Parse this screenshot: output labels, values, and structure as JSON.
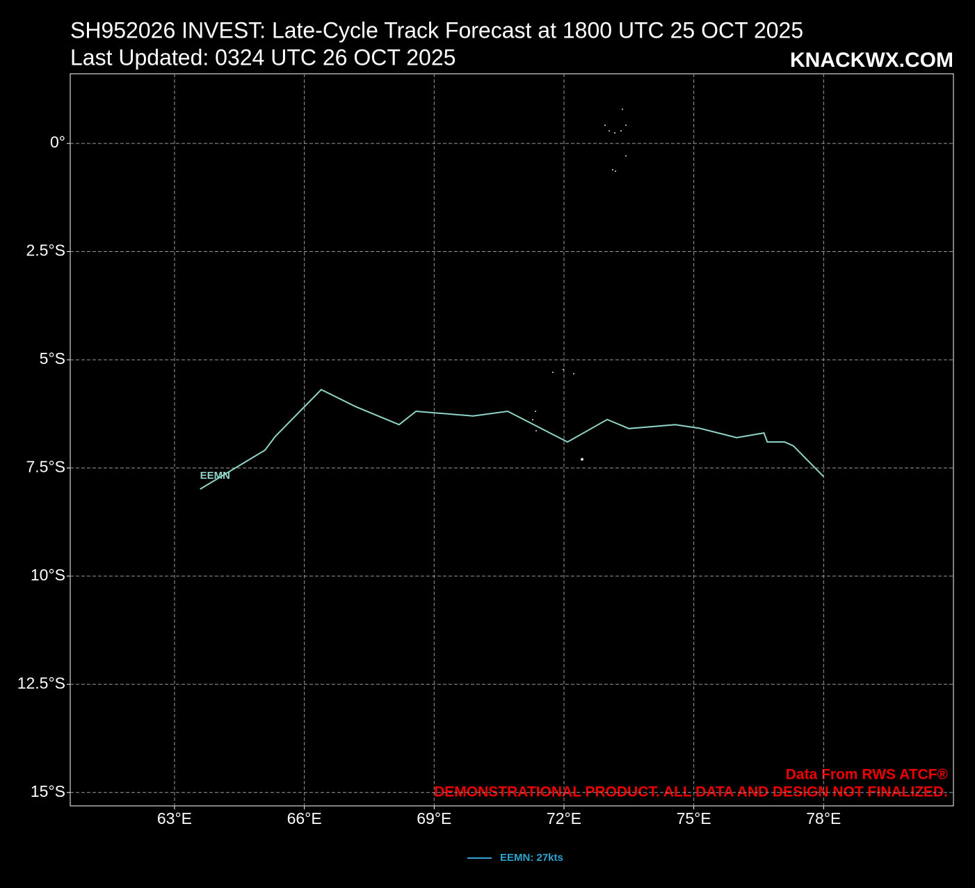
{
  "chart_data": {
    "type": "line",
    "title": "SH952026 INVEST: Late-Cycle Track Forecast at 1800 UTC 25 OCT 2025",
    "subtitle": "Last Updated: 0324 UTC 26 OCT 2025",
    "brand": "KNACKWX.COM",
    "source": "Data From RWS ATCF®",
    "disclaimer": "DEMONSTRATIONAL PRODUCT. ALL DATA AND DESIGN NOT FINALIZED.",
    "track_label": "EEMN",
    "xlim": [
      60.59,
      81.0
    ],
    "ylim": [
      -15.31,
      1.61
    ],
    "xticks": [
      {
        "value": 63,
        "label": "63°E"
      },
      {
        "value": 66,
        "label": "66°E"
      },
      {
        "value": 69,
        "label": "69°E"
      },
      {
        "value": 72,
        "label": "72°E"
      },
      {
        "value": 75,
        "label": "75°E"
      },
      {
        "value": 78,
        "label": "78°E"
      }
    ],
    "yticks": [
      {
        "value": 0,
        "label": "0°"
      },
      {
        "value": -2.5,
        "label": "2.5°S"
      },
      {
        "value": -5,
        "label": "5°S"
      },
      {
        "value": -7.5,
        "label": "7.5°S"
      },
      {
        "value": -10,
        "label": "10°S"
      },
      {
        "value": -12.5,
        "label": "12.5°S"
      },
      {
        "value": -15,
        "label": "15°S"
      }
    ],
    "grid": true,
    "legend": "bottom",
    "legend_color": "#2ba4cf",
    "series": [
      {
        "name": "EEMN: 27kts",
        "color": "#8fd4c8",
        "x": [
          63.59,
          65.09,
          65.33,
          66.39,
          67.2,
          68.19,
          68.58,
          69.9,
          70.7,
          72.08,
          73.0,
          73.5,
          74.57,
          75.12,
          75.99,
          76.62,
          76.7,
          77.1,
          77.3,
          78.0
        ],
        "values": [
          -7.99,
          -7.09,
          -6.77,
          -5.69,
          -6.09,
          -6.5,
          -6.19,
          -6.3,
          -6.19,
          -6.9,
          -6.38,
          -6.59,
          -6.5,
          -6.58,
          -6.8,
          -6.69,
          -6.9,
          -6.9,
          -6.99,
          -7.7
        ]
      }
    ]
  }
}
